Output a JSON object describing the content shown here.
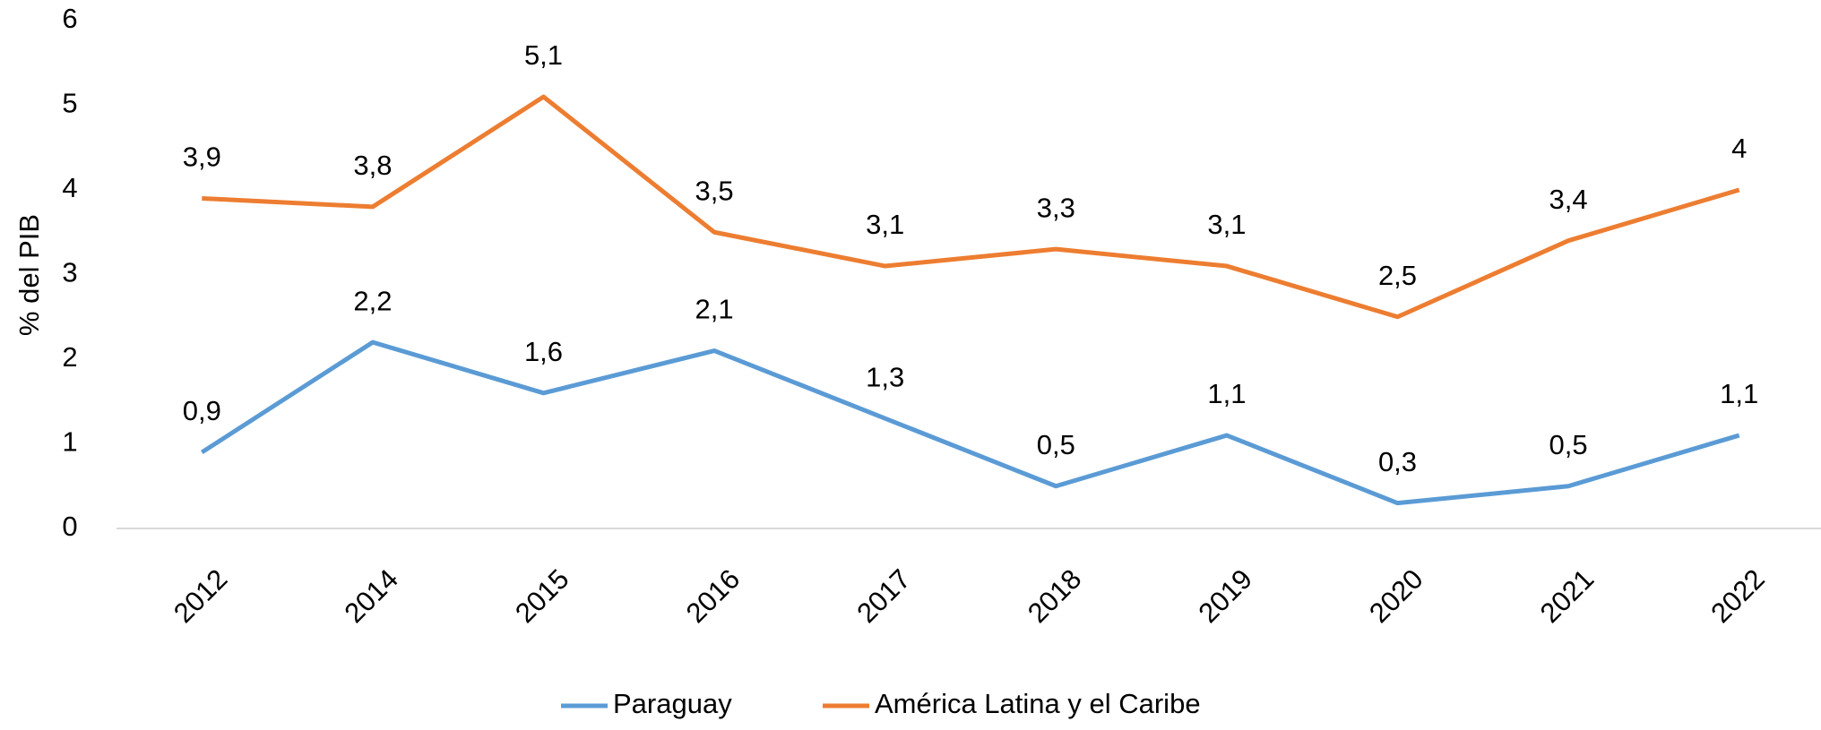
{
  "chart_data": {
    "type": "line",
    "y_label": "% del PIB",
    "categories": [
      "2012",
      "2014",
      "2015",
      "2016",
      "2017",
      "2018",
      "2019",
      "2020",
      "2021",
      "2022"
    ],
    "series": [
      {
        "name": "Paraguay",
        "color": "#5b9bd5",
        "values": [
          0.9,
          2.2,
          1.6,
          2.1,
          1.3,
          0.5,
          1.1,
          0.3,
          0.5,
          1.1
        ],
        "value_labels": [
          "0,9",
          "2,2",
          "1,6",
          "2,1",
          "1,3",
          "0,5",
          "1,1",
          "0,3",
          "0,5",
          "1,1"
        ]
      },
      {
        "name": "América Latina y el Caribe",
        "color": "#ed7d31",
        "values": [
          3.9,
          3.8,
          5.1,
          3.5,
          3.1,
          3.3,
          3.1,
          2.5,
          3.4,
          4
        ],
        "value_labels": [
          "3,9",
          "3,8",
          "5,1",
          "3,5",
          "3,1",
          "3,3",
          "3,1",
          "2,5",
          "3,4",
          "4"
        ]
      }
    ],
    "ylim": [
      0,
      6
    ],
    "yticks": [
      0,
      1,
      2,
      3,
      4,
      5,
      6
    ],
    "grid": false,
    "legend": "bottom"
  }
}
